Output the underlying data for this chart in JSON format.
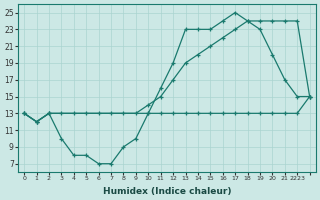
{
  "line_steep_x": [
    0,
    1,
    2,
    10,
    11,
    12,
    13,
    14,
    15,
    16,
    17,
    18,
    19,
    20,
    21,
    22,
    23
  ],
  "line_steep_y": [
    13,
    12,
    13,
    13,
    16,
    19,
    23,
    23,
    23,
    24,
    25,
    24,
    23,
    20,
    17,
    15,
    15
  ],
  "line_gradual_x": [
    0,
    1,
    2,
    3,
    4,
    5,
    6,
    7,
    8,
    9,
    10,
    11,
    12,
    13,
    14,
    15,
    16,
    17,
    18,
    19,
    20,
    21,
    22,
    23
  ],
  "line_gradual_y": [
    13,
    12,
    13,
    13,
    13,
    13,
    13,
    13,
    13,
    13,
    14,
    15,
    17,
    19,
    20,
    21,
    22,
    23,
    24,
    24,
    24,
    24,
    24,
    15
  ],
  "line_dip_x": [
    0,
    1,
    2,
    3,
    4,
    5,
    6,
    7,
    8,
    9,
    10,
    11,
    12,
    13,
    14,
    15,
    16,
    17,
    18,
    19,
    20,
    21,
    22,
    23
  ],
  "line_dip_y": [
    13,
    12,
    13,
    10,
    8,
    8,
    7,
    7,
    9,
    10,
    13,
    13,
    13,
    13,
    13,
    13,
    13,
    13,
    13,
    13,
    13,
    13,
    13,
    15
  ],
  "color": "#1a7a6e",
  "bg_color": "#cce8e5",
  "grid_color": "#aad4d0",
  "xlabel": "Humidex (Indice chaleur)",
  "ylim": [
    6,
    26
  ],
  "xlim_min": -0.5,
  "xlim_max": 23.5,
  "yticks": [
    7,
    9,
    11,
    13,
    15,
    17,
    19,
    21,
    23,
    25
  ],
  "xtick_vals": [
    0,
    1,
    2,
    3,
    4,
    5,
    6,
    7,
    8,
    9,
    10,
    11,
    12,
    13,
    14,
    15,
    16,
    17,
    18,
    19,
    20,
    21,
    22,
    23
  ],
  "xtick_labels": [
    "0",
    "1",
    "2",
    "3",
    "4",
    "5",
    "6",
    "7",
    "8",
    "9",
    "10",
    "11",
    "12",
    "13",
    "14",
    "15",
    "16",
    "17",
    "18",
    "19",
    "20",
    "21",
    "2223",
    ""
  ]
}
